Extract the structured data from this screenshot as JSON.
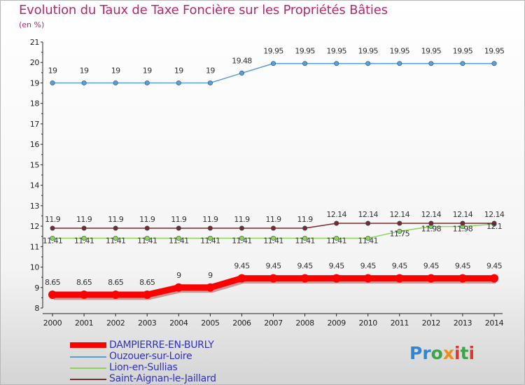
{
  "title": "Evolution du Taux de Taxe Foncière sur les Propriétés Bâties",
  "unit_label": "(en %)",
  "logo": {
    "text": "Proxiti"
  },
  "chart_data": {
    "type": "line",
    "title": "Evolution du Taux de Taxe Foncière sur les Propriétés Bâties",
    "ylabel": "(en %)",
    "xlabel": "",
    "x": [
      "2000",
      "2001",
      "2002",
      "2003",
      "2004",
      "2005",
      "2006",
      "2007",
      "2008",
      "2009",
      "2010",
      "2011",
      "2012",
      "2013",
      "2014"
    ],
    "yticks": [
      "8",
      "9",
      "10",
      "11",
      "12",
      "13",
      "14",
      "15",
      "16",
      "17",
      "18",
      "19",
      "20",
      "21"
    ],
    "ylim": [
      8,
      21
    ],
    "grid": false,
    "legend_position": "bottom-left",
    "series": [
      {
        "name": "DAMPIERRE-EN-BURLY",
        "color": "#ff0000",
        "values": [
          8.65,
          8.65,
          8.65,
          8.65,
          9,
          9,
          9.45,
          9.45,
          9.45,
          9.45,
          9.45,
          9.45,
          9.45,
          9.45,
          9.45
        ],
        "labels": [
          "8.65",
          "8.65",
          "8.65",
          "8.65",
          "9",
          "9",
          "9.45",
          "9.45",
          "9.45",
          "9.45",
          "9.45",
          "9.45",
          "9.45",
          "9.45",
          "9.45"
        ]
      },
      {
        "name": "Ouzouer-sur-Loire",
        "color": "#5a9ed6",
        "values": [
          19,
          19,
          19,
          19,
          19,
          19,
          19.48,
          19.95,
          19.95,
          19.95,
          19.95,
          19.95,
          19.95,
          19.95,
          19.95
        ],
        "labels": [
          "19",
          "19",
          "19",
          "19",
          "19",
          "19",
          "19.48",
          "19.95",
          "19.95",
          "19.95",
          "19.95",
          "19.95",
          "19.95",
          "19.95",
          "19.95"
        ]
      },
      {
        "name": "Lion-en-Sullias",
        "color": "#8fd45a",
        "values": [
          11.41,
          11.41,
          11.41,
          11.41,
          11.41,
          11.41,
          11.41,
          11.41,
          11.41,
          11.41,
          11.41,
          11.75,
          11.98,
          11.98,
          12.1
        ],
        "labels": [
          "11.41",
          "11.41",
          "11.41",
          "11.41",
          "11.41",
          "11.41",
          "11.41",
          "11.41",
          "11.41",
          "11.41",
          "11.41",
          "11.75",
          "11.98",
          "11.98",
          "12.1"
        ]
      },
      {
        "name": "Saint-Aignan-le-Jaillard",
        "color": "#7a2a2a",
        "values": [
          11.9,
          11.9,
          11.9,
          11.9,
          11.9,
          11.9,
          11.9,
          11.9,
          11.9,
          12.14,
          12.14,
          12.14,
          12.14,
          12.14,
          12.14
        ],
        "labels": [
          "11.9",
          "11.9",
          "11.9",
          "11.9",
          "11.9",
          "11.9",
          "11.9",
          "11.9",
          "11.9",
          "12.14",
          "12.14",
          "12.14",
          "12.14",
          "12.14",
          "12.14"
        ]
      }
    ]
  }
}
